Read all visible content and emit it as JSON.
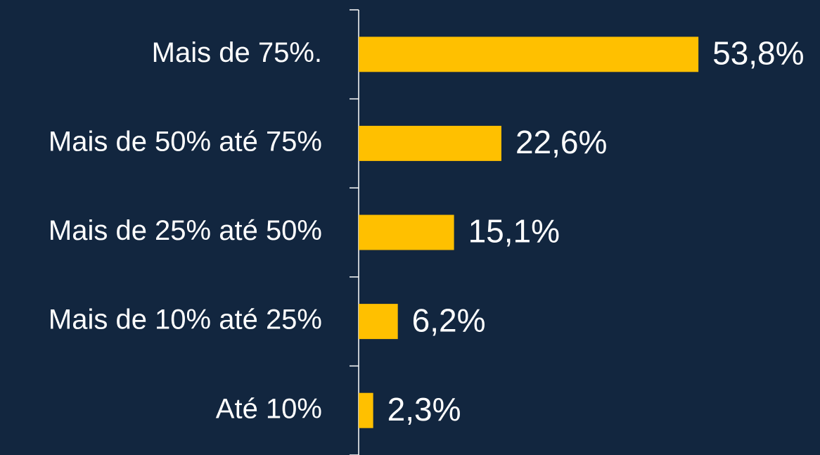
{
  "chart_data": {
    "type": "hbar",
    "categories": [
      "Mais de 75%.",
      "Mais de 50% até 75%",
      "Mais de 25% até 50%",
      "Mais de 10% até 25%",
      "Até 10%"
    ],
    "values": [
      53.8,
      22.6,
      15.1,
      6.2,
      2.3
    ],
    "value_labels": [
      "53,8%",
      "22,6%",
      "15,1%",
      "6,2%",
      "2,3%"
    ],
    "color": "#ffc000"
  }
}
